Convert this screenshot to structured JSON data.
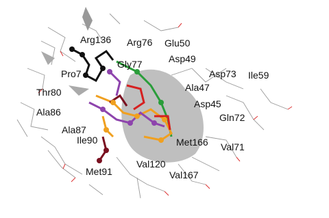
{
  "labels": [
    "Arg76",
    "Arg136",
    "Glu50",
    "Asp49",
    "Gly77",
    "Pro7",
    "Asp73",
    "Ile59",
    "Thr80",
    "Ala47",
    "Asp45",
    "Ala86",
    "Gln72",
    "Ala87",
    "Ile90",
    "Met166",
    "Val71",
    "Met91",
    "Val120",
    "Val167"
  ]
}
